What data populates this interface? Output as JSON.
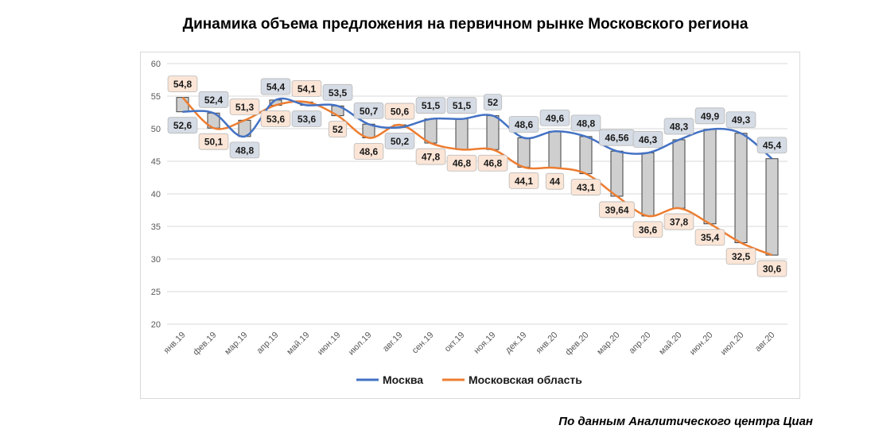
{
  "title": "Динамика объема предложения на первичном рынке Московского региона",
  "source": "По данным Аналитического центра Циан",
  "colors": {
    "moscow": "#4472c4",
    "oblast": "#ed7d31",
    "box": "#cfcfcf",
    "moscow_label_bg": "#d6dce5",
    "oblast_label_bg": "#fbe5d6",
    "grid": "#d9d9d9"
  },
  "chart_data": {
    "type": "line",
    "title": "Динамика объема предложения на первичном рынке Московского региона",
    "xlabel": "",
    "ylabel": "",
    "ylim": [
      20,
      60
    ],
    "yticks": [
      20,
      25,
      30,
      35,
      40,
      45,
      50,
      55,
      60
    ],
    "grid": true,
    "legend_position": "bottom",
    "categories": [
      "янв.19",
      "фев.19",
      "мар.19",
      "апр.19",
      "май.19",
      "июн.19",
      "июл.19",
      "авг.19",
      "сен.19",
      "окт.19",
      "ноя.19",
      "дек.19",
      "янв.20",
      "фев.20",
      "мар.20",
      "апр.20",
      "май.20",
      "июн.20",
      "июл.20",
      "авг.20"
    ],
    "series": [
      {
        "name": "Москва",
        "values": [
          52.6,
          52.4,
          48.8,
          54.4,
          53.6,
          53.5,
          50.7,
          50.2,
          51.5,
          51.5,
          52,
          48.6,
          49.6,
          48.8,
          46.56,
          46.3,
          48.3,
          49.9,
          49.3,
          45.4
        ],
        "labels": [
          "52,6",
          "52,4",
          "48,8",
          "54,4",
          "53,6",
          "53,5",
          "50,7",
          "50,2",
          "51,5",
          "51,5",
          "52",
          "48,6",
          "49,6",
          "48,8",
          "46,56",
          "46,3",
          "48,3",
          "49,9",
          "49,3",
          "45,4"
        ]
      },
      {
        "name": "Московская область",
        "values": [
          54.8,
          50.1,
          51.3,
          53.6,
          54.1,
          52,
          48.6,
          50.6,
          47.8,
          46.8,
          46.8,
          44.1,
          44,
          43.1,
          39.64,
          36.6,
          37.8,
          35.4,
          32.5,
          30.6
        ],
        "labels": [
          "54,8",
          "50,1",
          "51,3",
          "53,6",
          "54,1",
          "52",
          "48,6",
          "50,6",
          "47,8",
          "46,8",
          "46,8",
          "44,1",
          "44",
          "43,1",
          "39,64",
          "36,6",
          "37,8",
          "35,4",
          "32,5",
          "30,6"
        ]
      }
    ]
  }
}
